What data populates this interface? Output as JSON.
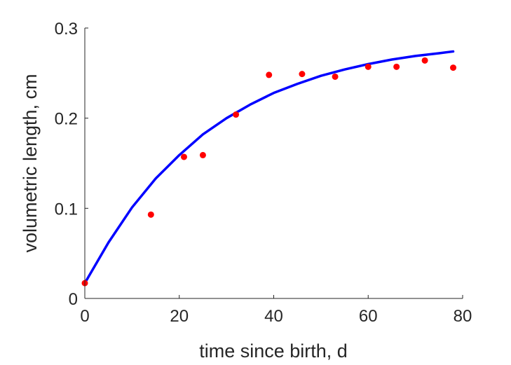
{
  "chart_data": {
    "type": "scatter",
    "xlabel": "time since birth, d",
    "ylabel": "volumetric length, cm",
    "xlim": [
      0,
      80
    ],
    "ylim": [
      0,
      0.3
    ],
    "xticks": [
      0,
      20,
      40,
      60,
      80
    ],
    "xtick_labels": [
      "0",
      "20",
      "40",
      "60",
      "80"
    ],
    "yticks": [
      0,
      0.1,
      0.2,
      0.3
    ],
    "ytick_labels": [
      "0",
      "0.1",
      "0.2",
      "0.3"
    ],
    "grid": false,
    "legend": "none",
    "series": [
      {
        "kind": "scatter",
        "color": "#ff0000",
        "x": [
          0,
          14,
          21,
          25,
          32,
          39,
          46,
          53,
          60,
          66,
          72,
          78
        ],
        "y": [
          0.017,
          0.093,
          0.157,
          0.159,
          0.204,
          0.248,
          0.249,
          0.246,
          0.257,
          0.257,
          0.264,
          0.256
        ]
      },
      {
        "kind": "line",
        "color": "#0000ff",
        "x": [
          0,
          5,
          10,
          15,
          20,
          25,
          30,
          35,
          40,
          45,
          50,
          55,
          60,
          65,
          70,
          75,
          78
        ],
        "y": [
          0.017,
          0.062,
          0.101,
          0.133,
          0.159,
          0.182,
          0.2,
          0.215,
          0.228,
          0.238,
          0.247,
          0.254,
          0.26,
          0.265,
          0.269,
          0.272,
          0.274
        ]
      }
    ]
  }
}
